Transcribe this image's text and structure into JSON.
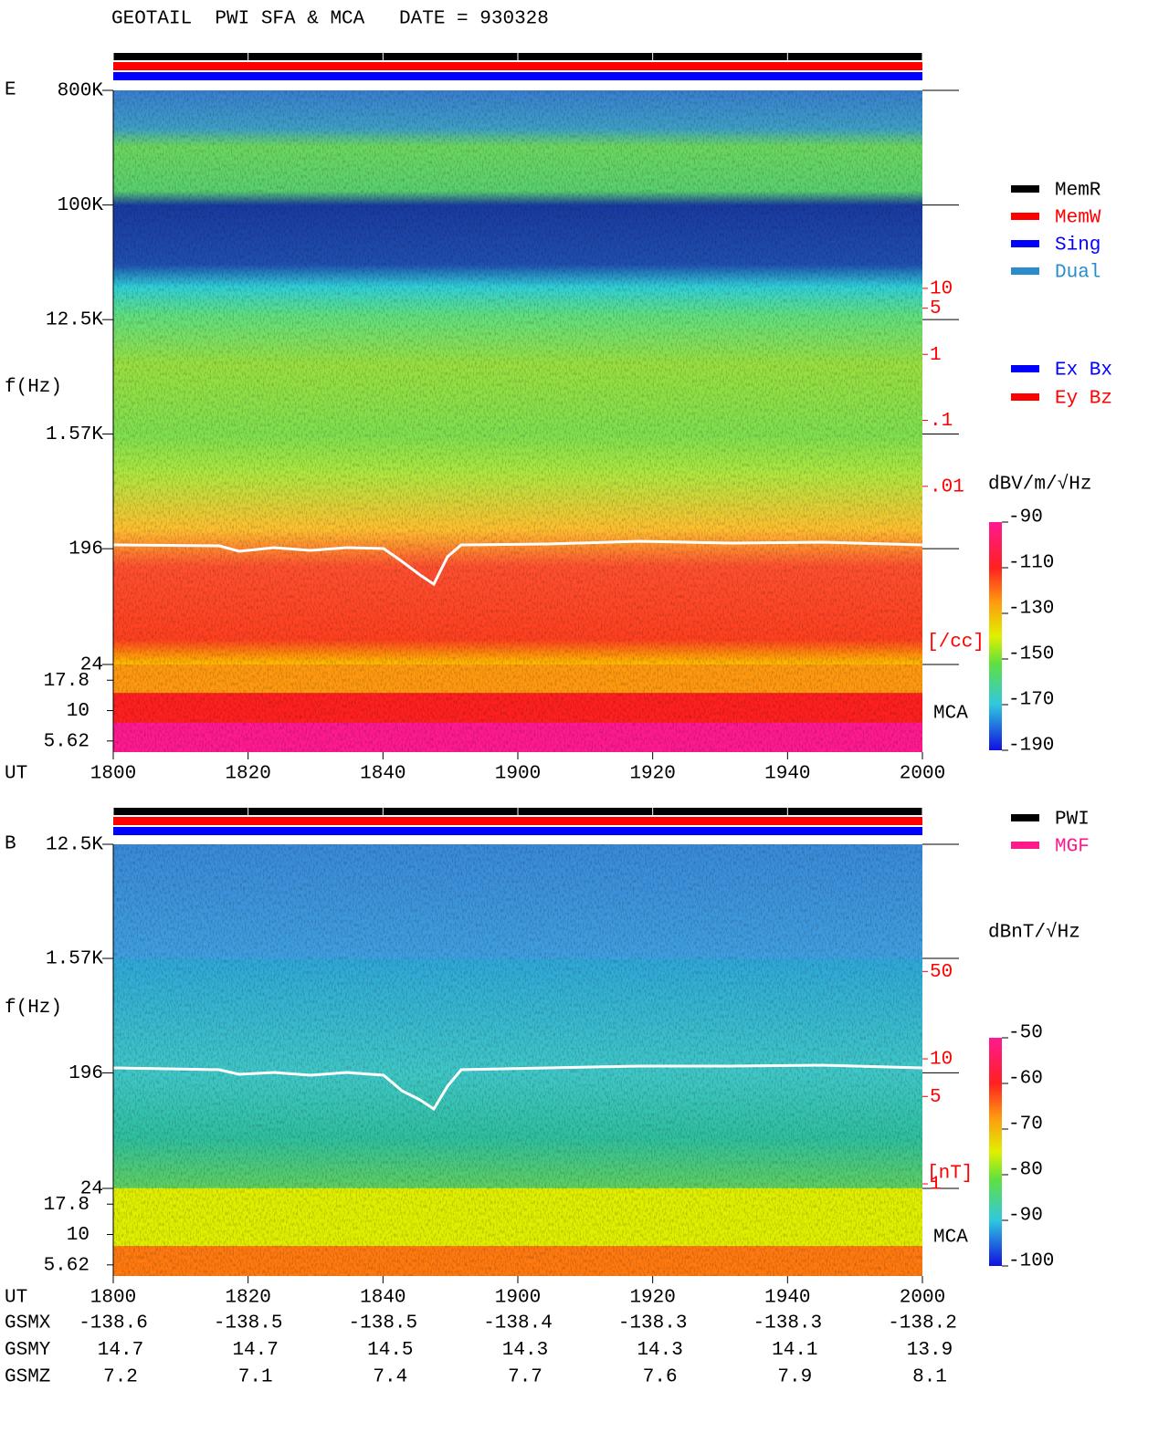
{
  "title": "GEOTAIL  PWI SFA & MCA   DATE = 930328",
  "chart_data": [
    {
      "type": "spectrogram",
      "panel_label": "E",
      "y_label": "f(Hz)",
      "x_label": "UT",
      "xlim": [
        0,
        120
      ],
      "xticks": [
        {
          "value": 0,
          "label": "1800"
        },
        {
          "value": 20,
          "label": "1820"
        },
        {
          "value": 40,
          "label": "1840"
        },
        {
          "value": 60,
          "label": "1900"
        },
        {
          "value": 80,
          "label": "1920"
        },
        {
          "value": 100,
          "label": "1940"
        },
        {
          "value": 120,
          "label": "2000"
        }
      ],
      "log_y": true,
      "ylim": [
        24,
        800000
      ],
      "yticks": [
        {
          "value": 800000,
          "label": "800K"
        },
        {
          "value": 100000,
          "label": "100K"
        },
        {
          "value": 12500,
          "label": "12.5K"
        },
        {
          "value": 1570,
          "label": "1.57K"
        },
        196,
        24
      ],
      "mca_label": "MCA",
      "mca_ylim": [
        4.55,
        24
      ],
      "mca_ticks": [
        17.8,
        10,
        5.62
      ],
      "colorbar_label": "dBV/m/√Hz",
      "clim": [
        -190,
        -90
      ],
      "cticks": [
        -90,
        -110,
        -130,
        -150,
        -170,
        -190
      ],
      "density_unit": "[/cc]",
      "density_ylim": [
        2e-05,
        10000
      ],
      "density_ticks": [
        10,
        5,
        1,
        {
          "value": 0.1,
          "label": ".1"
        },
        {
          "value": 0.01,
          "label": ".01"
        }
      ],
      "status_legend": [
        {
          "name": "MemR",
          "color": "#000000"
        },
        {
          "name": "MemW",
          "color": "#ff0000"
        },
        {
          "name": "Sing",
          "color": "#0000ff"
        },
        {
          "name": "Dual",
          "color": "#2a8ccc"
        }
      ],
      "component_legend": [
        {
          "name": "Ex Bx",
          "color": "#0000ff"
        },
        {
          "name": "Ey Bz",
          "color": "#ff0000"
        }
      ]
    },
    {
      "type": "spectrogram",
      "panel_label": "B",
      "y_label": "f(Hz)",
      "x_label": "UT",
      "xlim": [
        0,
        120
      ],
      "xticks": [
        {
          "value": 0,
          "label": "1800"
        },
        {
          "value": 20,
          "label": "1820"
        },
        {
          "value": 40,
          "label": "1840"
        },
        {
          "value": 60,
          "label": "1900"
        },
        {
          "value": 80,
          "label": "1920"
        },
        {
          "value": 100,
          "label": "1940"
        },
        {
          "value": 120,
          "label": "2000"
        }
      ],
      "log_y": true,
      "ylim": [
        24,
        12500
      ],
      "yticks": [
        {
          "value": 12500,
          "label": "12.5K"
        },
        {
          "value": 1570,
          "label": "1.57K"
        },
        196,
        24
      ],
      "mca_label": "MCA",
      "mca_ylim": [
        4.55,
        24
      ],
      "mca_ticks": [
        17.8,
        10,
        5.62
      ],
      "colorbar_label": "dBnT/√Hz",
      "clim": [
        -100,
        -50
      ],
      "cticks": [
        -50,
        -60,
        -70,
        -80,
        -90,
        -100
      ],
      "density_unit": "[nT]",
      "density_ylim": [
        0.92,
        520
      ],
      "density_ticks": [
        50,
        10,
        5,
        1
      ],
      "status_legend": [
        {
          "name": "PWI",
          "color": "#000000"
        },
        {
          "name": "MGF",
          "color": "#ff1a8c"
        }
      ]
    }
  ],
  "orbit": {
    "rows": [
      {
        "name": "GSMX",
        "values": [
          -138.6,
          -138.5,
          -138.5,
          -138.4,
          -138.3,
          -138.3,
          -138.2
        ]
      },
      {
        "name": "GSMY",
        "values": [
          14.7,
          14.7,
          14.5,
          14.3,
          14.3,
          14.1,
          13.9
        ]
      },
      {
        "name": "GSMZ",
        "values": [
          7.2,
          7.1,
          7.4,
          7.7,
          7.6,
          7.9,
          8.1
        ]
      }
    ]
  }
}
